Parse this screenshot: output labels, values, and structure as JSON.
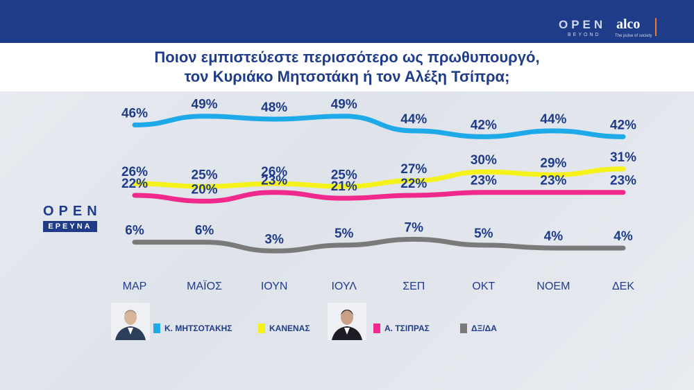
{
  "brand": {
    "open": "OPEN",
    "beyond": "BEYOND",
    "alco": "alco",
    "alco_tagline": "The pulse of society"
  },
  "title": {
    "line1": "Ποιον εμπιστεύεστε περισσότερο ως πρωθυπουργό,",
    "line2": "τον Κυριάκο Μητσοτάκη ή τον Αλέξη Τσίπρα;"
  },
  "watermark": {
    "open": "OPEN",
    "erevna": "ΕΡΕΥΝΑ"
  },
  "chart_data": {
    "type": "line",
    "title": "Ποιον εμπιστεύεστε περισσότερο ως πρωθυπουργό, τον Κυριάκο Μητσοτάκη ή τον Αλέξη Τσίπρα;",
    "x": [
      "ΜΑΡ",
      "ΜΑΪΟΣ",
      "ΙΟΥΝ",
      "ΙΟΥΛ",
      "ΣΕΠ",
      "ΟΚΤ",
      "ΝΟΕΜ",
      "ΔΕΚ"
    ],
    "series": [
      {
        "name": "Κ. ΜΗΤΣΟΤΑΚΗΣ",
        "color": "#1ea9e8",
        "values": [
          46,
          49,
          48,
          49,
          44,
          42,
          44,
          42
        ]
      },
      {
        "name": "ΚΑΝΕΝΑΣ",
        "color": "#f4f21a",
        "values": [
          26,
          25,
          26,
          25,
          27,
          30,
          29,
          31
        ]
      },
      {
        "name": "Α. ΤΣΙΠΡΑΣ",
        "color": "#ef2a8c",
        "values": [
          22,
          20,
          23,
          21,
          22,
          23,
          23,
          23
        ]
      },
      {
        "name": "ΔΞ/ΔΑ",
        "color": "#7a7a7a",
        "values": [
          6,
          6,
          3,
          5,
          7,
          5,
          4,
          4
        ]
      }
    ],
    "value_suffix": "%",
    "xlabel": "",
    "ylabel": "",
    "grid": false,
    "legend_position": "bottom"
  }
}
